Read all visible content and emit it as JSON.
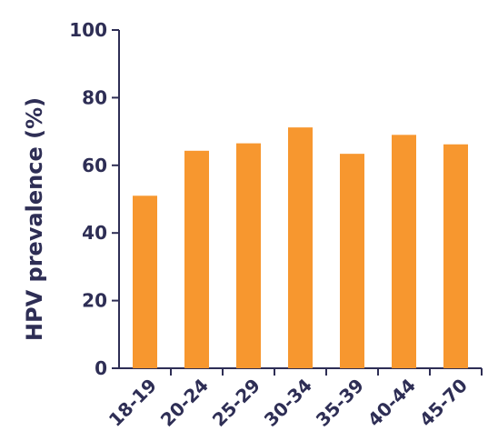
{
  "chart_data": {
    "type": "bar",
    "title": "",
    "xlabel": "",
    "ylabel": "HPV prevalence (%)",
    "ylim": [
      0,
      100
    ],
    "yticks": [
      0,
      20,
      40,
      60,
      80,
      100
    ],
    "categories": [
      "18-19",
      "20-24",
      "25-29",
      "30-34",
      "35-39",
      "40-44",
      "45-70"
    ],
    "values": [
      51,
      64.3,
      66.5,
      71.2,
      63.4,
      69,
      66.2
    ],
    "bar_color": "#f7972f",
    "axis_color": "#2e2e55",
    "grid": false,
    "legend": "none"
  }
}
